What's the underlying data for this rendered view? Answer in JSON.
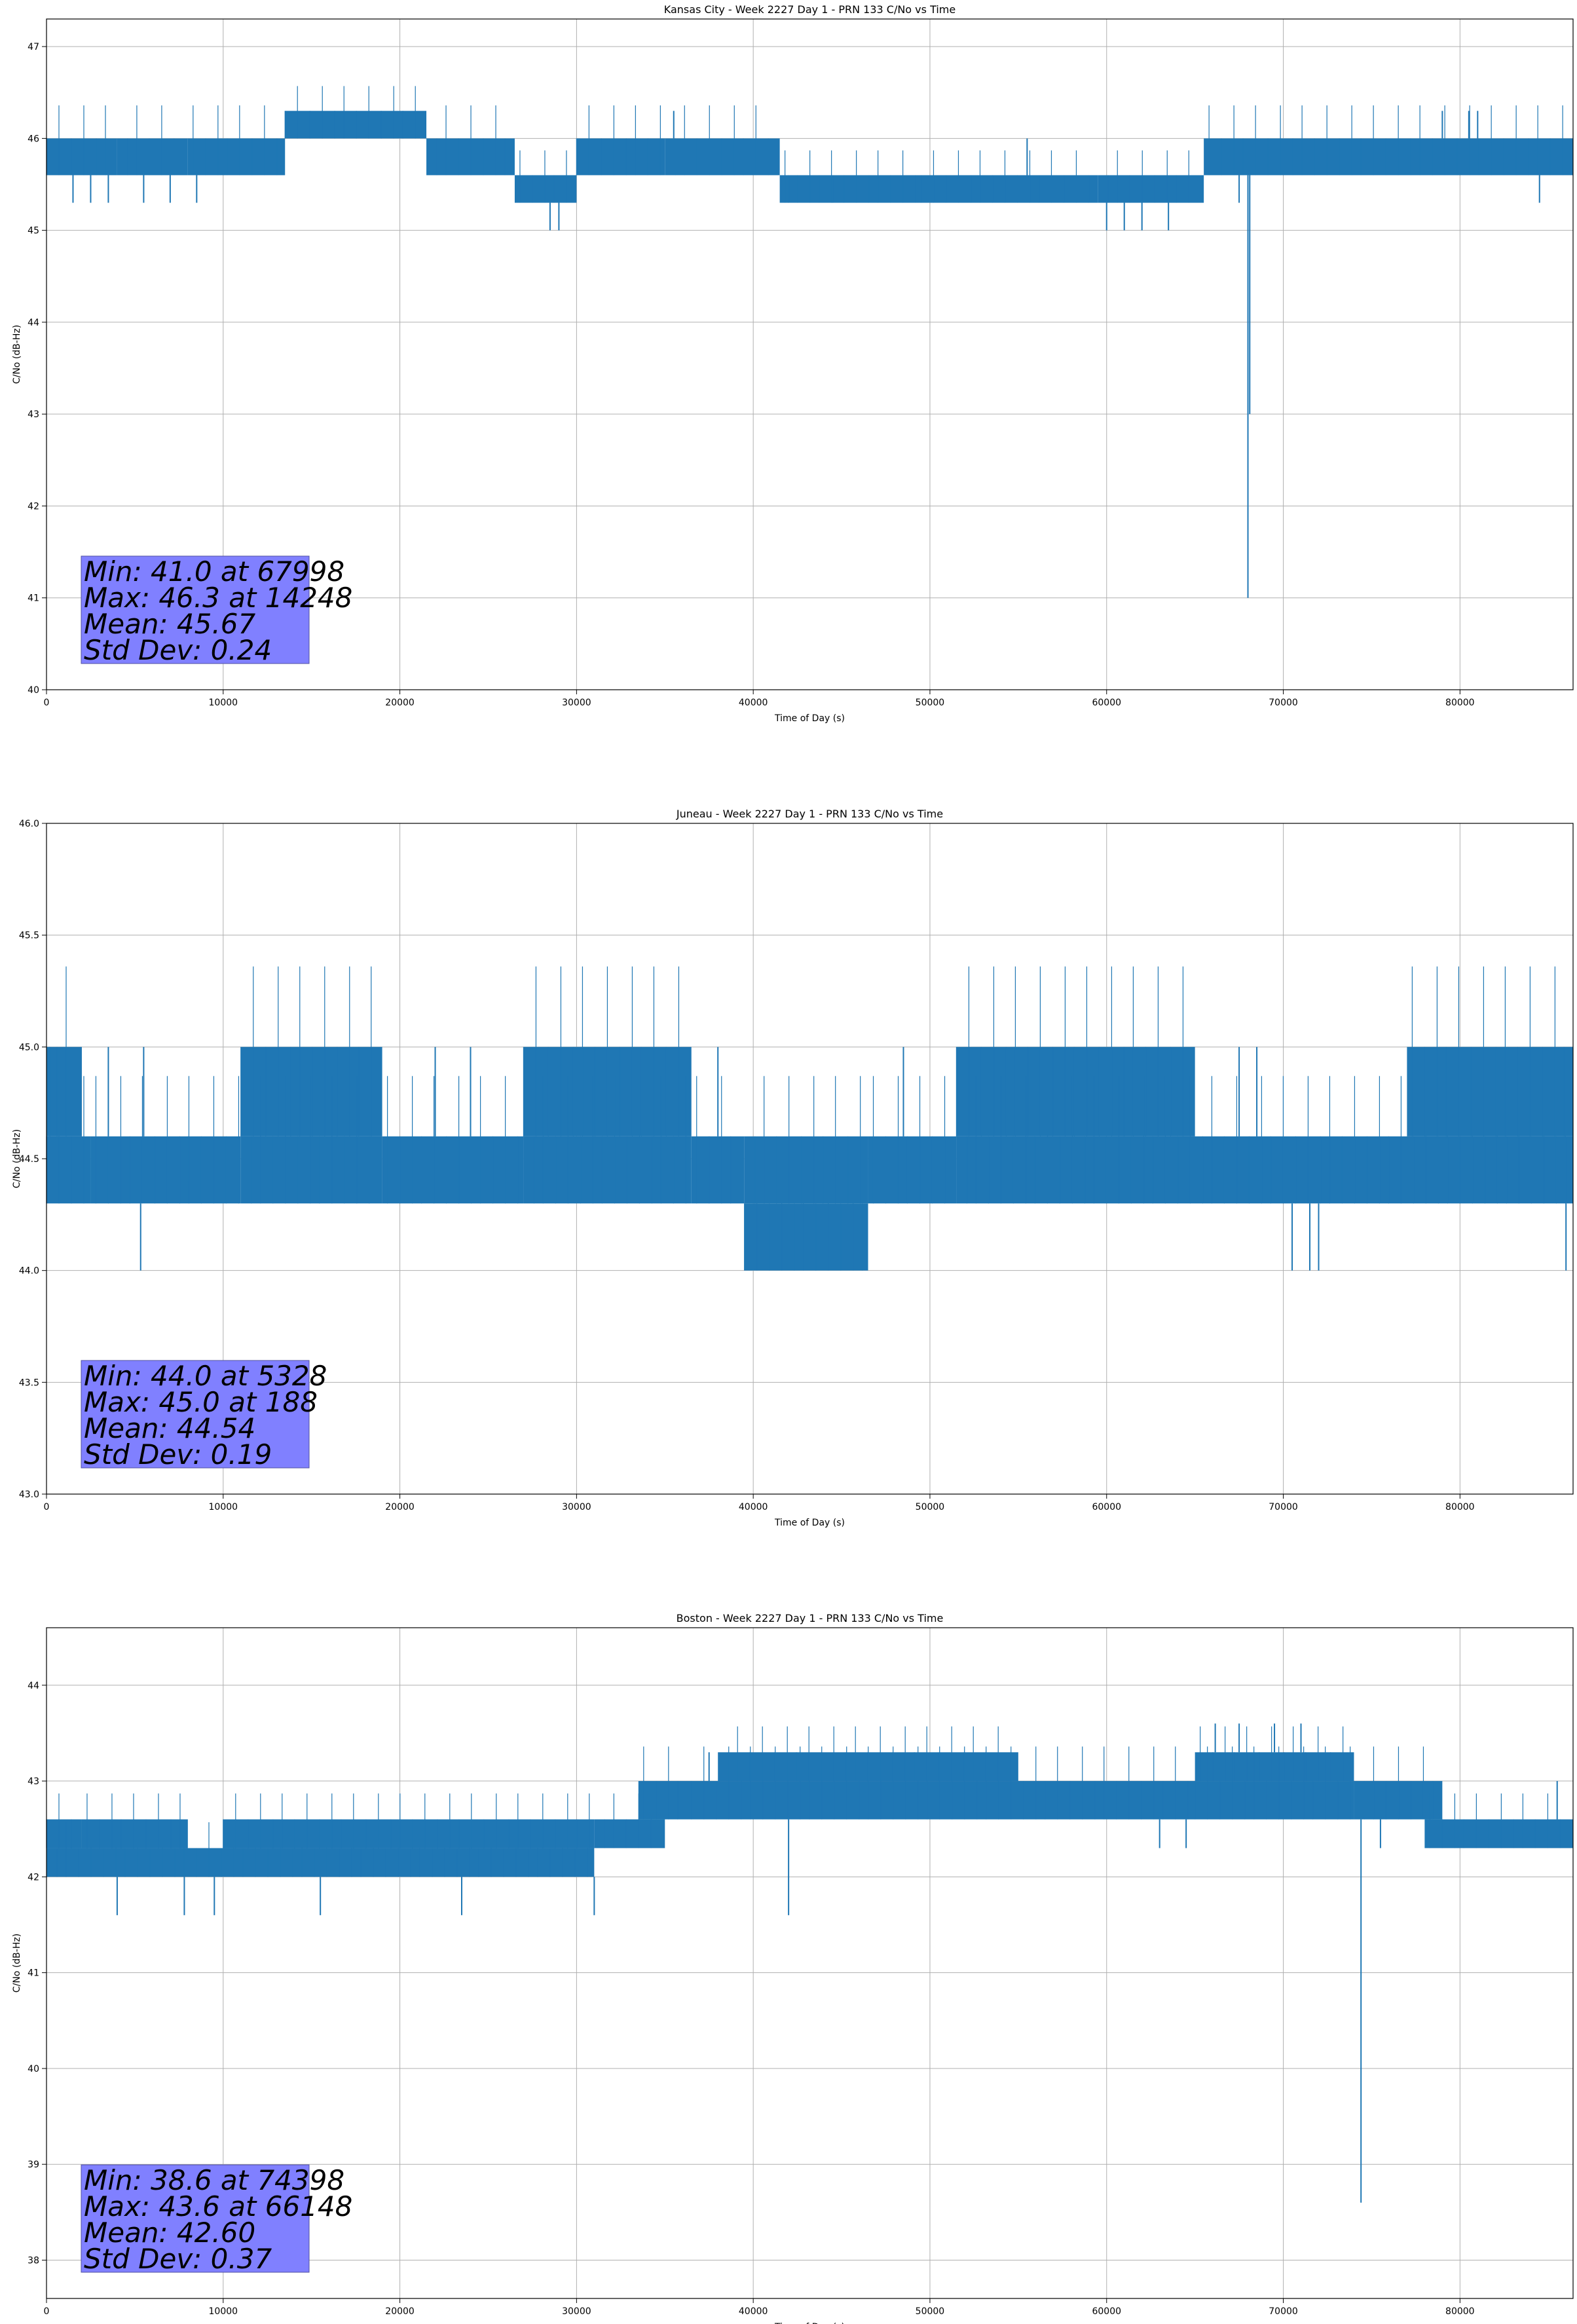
{
  "chart_data": [
    {
      "type": "line",
      "title": "Kansas City - Week 2227 Day 1 - PRN 133 C/No vs Time",
      "xlabel": "Time of Day (s)",
      "ylabel": "C/No (dB-Hz)",
      "xlim": [
        0,
        86400
      ],
      "ylim": [
        40,
        47.3
      ],
      "xticks": [
        0,
        10000,
        20000,
        30000,
        40000,
        50000,
        60000,
        70000,
        80000
      ],
      "yticks": [
        40,
        41,
        42,
        43,
        44,
        45,
        46,
        47
      ],
      "ytick_decimals": 0,
      "grid": true,
      "line_color": "#1f77b4",
      "band_segments": [
        [
          0,
          4000,
          45.6,
          46.0
        ],
        [
          4000,
          8000,
          45.6,
          46.0
        ],
        [
          8000,
          13500,
          45.6,
          46.0
        ],
        [
          13500,
          21500,
          46.0,
          46.3
        ],
        [
          21500,
          26500,
          45.6,
          46.0
        ],
        [
          26500,
          30000,
          45.3,
          45.6
        ],
        [
          30000,
          35000,
          45.6,
          46.0
        ],
        [
          35000,
          41500,
          45.6,
          46.0
        ],
        [
          41500,
          49500,
          45.3,
          45.6
        ],
        [
          49500,
          59500,
          45.3,
          45.6
        ],
        [
          59500,
          65500,
          45.3,
          45.6
        ],
        [
          65500,
          86400,
          45.6,
          46.0
        ]
      ],
      "spikes": [
        [
          1500,
          45.3
        ],
        [
          2500,
          45.3
        ],
        [
          3500,
          45.3
        ],
        [
          5500,
          45.3
        ],
        [
          7000,
          45.3
        ],
        [
          8500,
          45.3
        ],
        [
          14248,
          46.3
        ],
        [
          15500,
          46.3
        ],
        [
          17500,
          46.3
        ],
        [
          19500,
          46.3
        ],
        [
          21000,
          46.3
        ],
        [
          28500,
          45.0
        ],
        [
          29000,
          45.0
        ],
        [
          35500,
          46.3
        ],
        [
          38000,
          46.0
        ],
        [
          42000,
          45.3
        ],
        [
          44500,
          45.3
        ],
        [
          55500,
          46.0
        ],
        [
          60000,
          45.0
        ],
        [
          61000,
          45.0
        ],
        [
          62000,
          45.0
        ],
        [
          63500,
          45.0
        ],
        [
          64500,
          45.6
        ],
        [
          67500,
          45.3
        ],
        [
          67998,
          41.0
        ],
        [
          68100,
          43.0
        ],
        [
          79000,
          46.3
        ],
        [
          80500,
          46.3
        ],
        [
          81000,
          46.3
        ],
        [
          84500,
          45.3
        ]
      ],
      "stats": [
        "Min: 41.0 at 67998",
        "Max: 46.3 at 14248",
        "Mean: 45.67",
        "Std Dev: 0.24"
      ],
      "stats_box_color": "#8080ff"
    },
    {
      "type": "line",
      "title": "Juneau - Week 2227 Day 1 - PRN 133 C/No vs Time",
      "xlabel": "Time of Day (s)",
      "ylabel": "C/No (dB-Hz)",
      "xlim": [
        0,
        86400
      ],
      "ylim": [
        43.0,
        46.0
      ],
      "xticks": [
        0,
        10000,
        20000,
        30000,
        40000,
        50000,
        60000,
        70000,
        80000
      ],
      "yticks": [
        43.0,
        43.5,
        44.0,
        44.5,
        45.0,
        45.5,
        46.0
      ],
      "ytick_decimals": 1,
      "grid": true,
      "line_color": "#1f77b4",
      "band_segments": [
        [
          0,
          2500,
          44.3,
          44.6
        ],
        [
          0,
          2000,
          44.6,
          45.0
        ],
        [
          2500,
          11000,
          44.3,
          44.6
        ],
        [
          11000,
          19000,
          44.6,
          45.0
        ],
        [
          11000,
          19000,
          44.3,
          44.6
        ],
        [
          19000,
          27000,
          44.3,
          44.6
        ],
        [
          27000,
          36500,
          44.6,
          45.0
        ],
        [
          27000,
          36500,
          44.3,
          44.6
        ],
        [
          36500,
          39500,
          44.3,
          44.6
        ],
        [
          39500,
          46500,
          44.0,
          44.3
        ],
        [
          39500,
          46500,
          44.3,
          44.6
        ],
        [
          46500,
          51500,
          44.3,
          44.6
        ],
        [
          51500,
          65000,
          44.6,
          45.0
        ],
        [
          51500,
          86400,
          44.3,
          44.6
        ],
        [
          77000,
          86400,
          44.6,
          45.0
        ]
      ],
      "spikes": [
        [
          188,
          45.0
        ],
        [
          3500,
          45.0
        ],
        [
          5328,
          44.0
        ],
        [
          5500,
          45.0
        ],
        [
          8000,
          44.4
        ],
        [
          22000,
          45.0
        ],
        [
          24000,
          45.0
        ],
        [
          38000,
          45.0
        ],
        [
          48500,
          45.0
        ],
        [
          58500,
          45.0
        ],
        [
          67500,
          45.0
        ],
        [
          68500,
          45.0
        ],
        [
          70500,
          44.0
        ],
        [
          71500,
          44.0
        ],
        [
          72000,
          44.0
        ],
        [
          86000,
          44.0
        ]
      ],
      "stats": [
        "Min: 44.0 at 5328",
        "Max: 45.0 at 188",
        "Mean: 44.54",
        "Std Dev: 0.19"
      ],
      "stats_box_color": "#8080ff"
    },
    {
      "type": "line",
      "title": "Boston - Week 2227 Day 1 - PRN 133 C/No vs Time",
      "xlabel": "Time of Day (s)",
      "ylabel": "C/No (dB-Hz)",
      "xlim": [
        0,
        86400
      ],
      "ylim": [
        37.6,
        44.6
      ],
      "xticks": [
        0,
        10000,
        20000,
        30000,
        40000,
        50000,
        60000,
        70000,
        80000
      ],
      "yticks": [
        38,
        39,
        40,
        41,
        42,
        43,
        44
      ],
      "ytick_decimals": 0,
      "grid": true,
      "line_color": "#1f77b4",
      "band_segments": [
        [
          0,
          2000,
          42.3,
          42.6
        ],
        [
          0,
          31000,
          42.0,
          42.3
        ],
        [
          2000,
          8000,
          42.3,
          42.6
        ],
        [
          10000,
          31000,
          42.3,
          42.6
        ],
        [
          31000,
          35000,
          42.3,
          42.6
        ],
        [
          33500,
          36500,
          42.6,
          43.0
        ],
        [
          36500,
          65000,
          42.6,
          43.0
        ],
        [
          38000,
          55000,
          43.0,
          43.3
        ],
        [
          65000,
          74000,
          43.0,
          43.3
        ],
        [
          65000,
          74000,
          42.6,
          43.0
        ],
        [
          74000,
          79000,
          42.6,
          43.0
        ],
        [
          78000,
          86400,
          42.3,
          42.6
        ]
      ],
      "spikes": [
        [
          4000,
          41.6
        ],
        [
          7800,
          41.6
        ],
        [
          9500,
          41.6
        ],
        [
          15500,
          41.6
        ],
        [
          23500,
          41.6
        ],
        [
          31000,
          41.6
        ],
        [
          37500,
          43.3
        ],
        [
          42000,
          41.6
        ],
        [
          63000,
          42.3
        ],
        [
          64500,
          42.3
        ],
        [
          66148,
          43.6
        ],
        [
          67500,
          43.6
        ],
        [
          69500,
          43.6
        ],
        [
          71000,
          43.6
        ],
        [
          74398,
          38.6
        ],
        [
          75500,
          42.3
        ],
        [
          85500,
          43.0
        ]
      ],
      "stats": [
        "Min: 38.6 at 74398",
        "Max: 43.6 at 66148",
        "Mean: 42.60",
        "Std Dev: 0.37"
      ],
      "stats_box_color": "#8080ff"
    }
  ]
}
